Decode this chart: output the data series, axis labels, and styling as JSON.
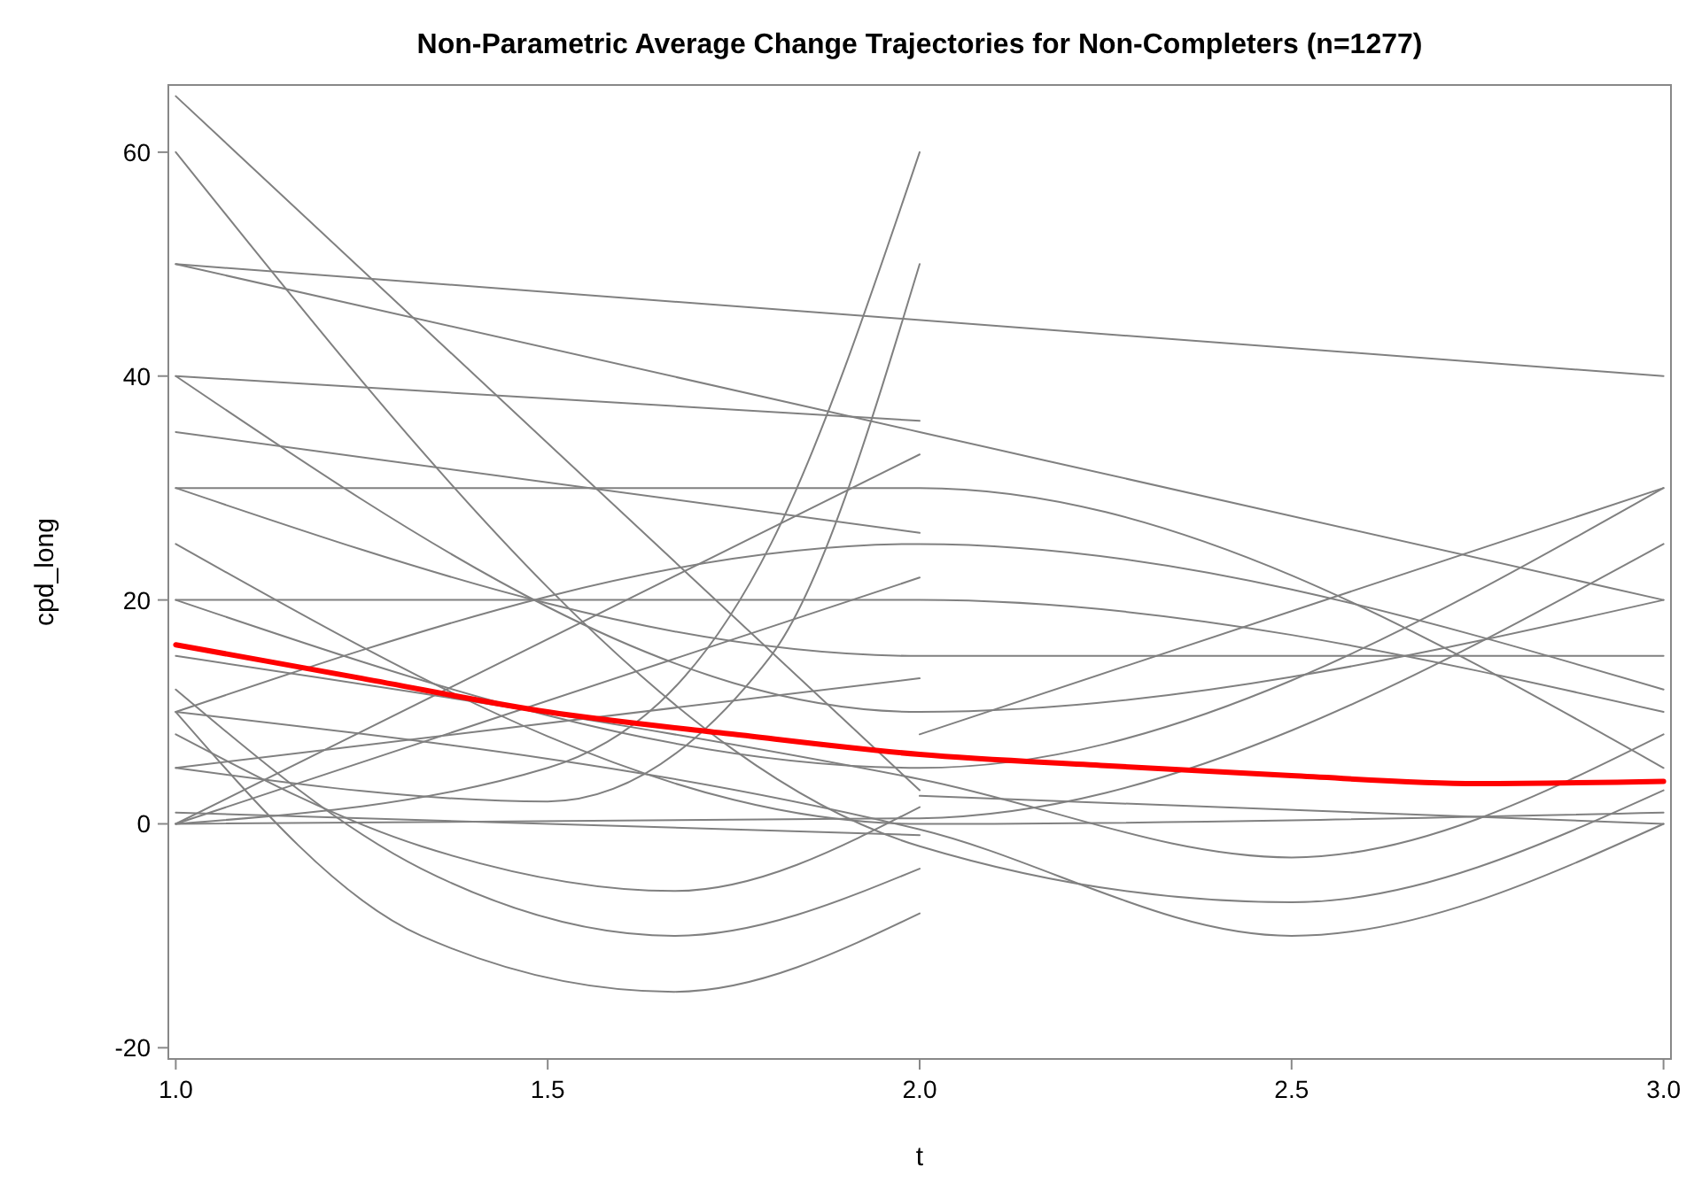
{
  "chart_data": {
    "type": "line",
    "title": "Non-Parametric Average Change Trajectories for Non-Completers (n=1277)",
    "xlabel": "t",
    "ylabel": "cpd_long",
    "xlim": [
      0.99,
      3.01
    ],
    "ylim": [
      -21,
      66
    ],
    "xticks": [
      {
        "value": 1,
        "label": "1.0"
      },
      {
        "value": 1.5,
        "label": "1.5"
      },
      {
        "value": 2,
        "label": "2.0"
      },
      {
        "value": 2.5,
        "label": "2.5"
      },
      {
        "value": 3,
        "label": "3.0"
      }
    ],
    "yticks": [
      -20,
      0,
      20,
      40,
      60
    ],
    "grid": false,
    "line_style": "solid",
    "series": [
      {
        "color": "#808080",
        "x": [
          1,
          2
        ],
        "values": [
          65,
          3
        ]
      },
      {
        "color": "#808080",
        "x": [
          1,
          2,
          2.5,
          3
        ],
        "values": [
          60,
          -2,
          -7,
          3
        ]
      },
      {
        "color": "#808080",
        "x": [
          1,
          3
        ],
        "values": [
          50,
          40
        ]
      },
      {
        "color": "#808080",
        "x": [
          1,
          2,
          3
        ],
        "values": [
          50,
          35,
          20
        ]
      },
      {
        "color": "#808080",
        "x": [
          1,
          2,
          3
        ],
        "values": [
          40,
          10,
          20
        ]
      },
      {
        "color": "#808080",
        "x": [
          1,
          2
        ],
        "values": [
          40,
          36
        ]
      },
      {
        "color": "#808080",
        "x": [
          1,
          2
        ],
        "values": [
          35,
          26
        ]
      },
      {
        "color": "#808080",
        "x": [
          1,
          2,
          3
        ],
        "values": [
          30,
          15,
          15
        ]
      },
      {
        "color": "#808080",
        "x": [
          1,
          2,
          3
        ],
        "values": [
          30,
          30,
          5
        ]
      },
      {
        "color": "#808080",
        "x": [
          1,
          2,
          3
        ],
        "values": [
          25,
          0,
          1
        ]
      },
      {
        "color": "#808080",
        "x": [
          1,
          2,
          3
        ],
        "values": [
          20,
          20,
          10
        ]
      },
      {
        "color": "#808080",
        "x": [
          1,
          2,
          3
        ],
        "values": [
          20,
          5,
          30
        ]
      },
      {
        "color": "#808080",
        "x": [
          1,
          2,
          2.5,
          3
        ],
        "values": [
          15,
          4,
          -3,
          8
        ]
      },
      {
        "color": "#808080",
        "x": [
          1,
          2,
          2.5,
          3
        ],
        "values": [
          10,
          -0.5,
          -10,
          0
        ]
      },
      {
        "color": "#808080",
        "x": [
          1,
          2,
          3
        ],
        "values": [
          10,
          25,
          12
        ]
      },
      {
        "color": "#808080",
        "x": [
          1,
          2
        ],
        "values": [
          5,
          13
        ]
      },
      {
        "color": "#808080",
        "x": [
          1,
          2
        ],
        "values": [
          0,
          33
        ]
      },
      {
        "color": "#808080",
        "x": [
          1,
          2
        ],
        "values": [
          0,
          22
        ]
      },
      {
        "color": "#808080",
        "x": [
          1,
          2,
          3
        ],
        "values": [
          0,
          0.5,
          25
        ]
      },
      {
        "color": "#808080",
        "x": [
          1,
          2
        ],
        "values": [
          1,
          -1
        ]
      },
      {
        "color": "#808080",
        "x": [
          1,
          1.5,
          1.8,
          2
        ],
        "values": [
          0,
          5,
          25,
          60
        ]
      },
      {
        "color": "#808080",
        "x": [
          1,
          1.5,
          1.8,
          2
        ],
        "values": [
          5,
          2,
          15,
          50
        ]
      },
      {
        "color": "#808080",
        "x": [
          1,
          1.33,
          1.67,
          2
        ],
        "values": [
          10,
          -10,
          -15,
          -8
        ]
      },
      {
        "color": "#808080",
        "x": [
          1,
          1.33,
          1.67,
          2
        ],
        "values": [
          12,
          -4,
          -10,
          -4
        ]
      },
      {
        "color": "#808080",
        "x": [
          1,
          1.33,
          1.67,
          2
        ],
        "values": [
          8,
          -2,
          -6,
          1.5
        ]
      },
      {
        "color": "#808080",
        "x": [
          2,
          3
        ],
        "values": [
          2.5,
          0
        ]
      },
      {
        "color": "#808080",
        "x": [
          2,
          3
        ],
        "values": [
          8,
          30
        ]
      },
      {
        "color": "#ff0000",
        "x": [
          1,
          1.25,
          1.5,
          1.75,
          2,
          2.25,
          2.5,
          2.75,
          3
        ],
        "values": [
          16,
          13,
          10,
          8,
          6.2,
          5.2,
          4.3,
          3.6,
          3.8
        ]
      }
    ]
  }
}
